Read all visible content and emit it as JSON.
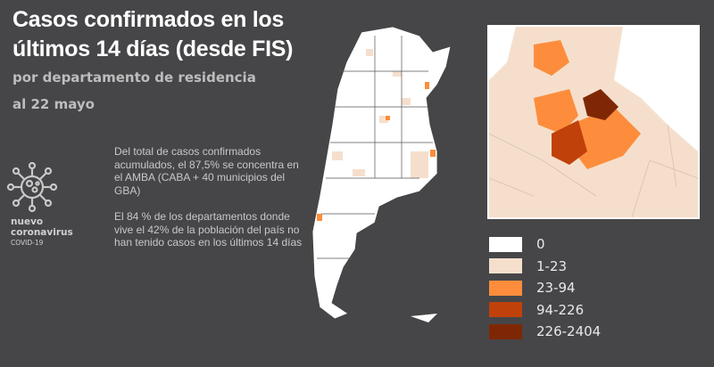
{
  "title": "Casos confirmados en los últimos 14 días (desde FIS)",
  "subtitle": "por departamento de residencia",
  "date": "al 22 mayo",
  "paragraphs": [
    "Del total de casos confirmados acumulados, el 87,5% se concentra en el AMBA (CABA + 40 municipios del GBA)",
    "El 84 % de los departamentos donde vive el 42% de la población del país no han tenido casos en los últimos 14 días"
  ],
  "brand": {
    "line1": "nuevo",
    "line2": "coronavirus",
    "line3": "COVID-19"
  },
  "legend": [
    {
      "label": "0",
      "color": "#ffffff"
    },
    {
      "label": "1-23",
      "color": "#f5dfcc"
    },
    {
      "label": "23-94",
      "color": "#fd8d3c"
    },
    {
      "label": "94-226",
      "color": "#c0410a"
    },
    {
      "label": "226-2404",
      "color": "#7f2704"
    }
  ]
}
